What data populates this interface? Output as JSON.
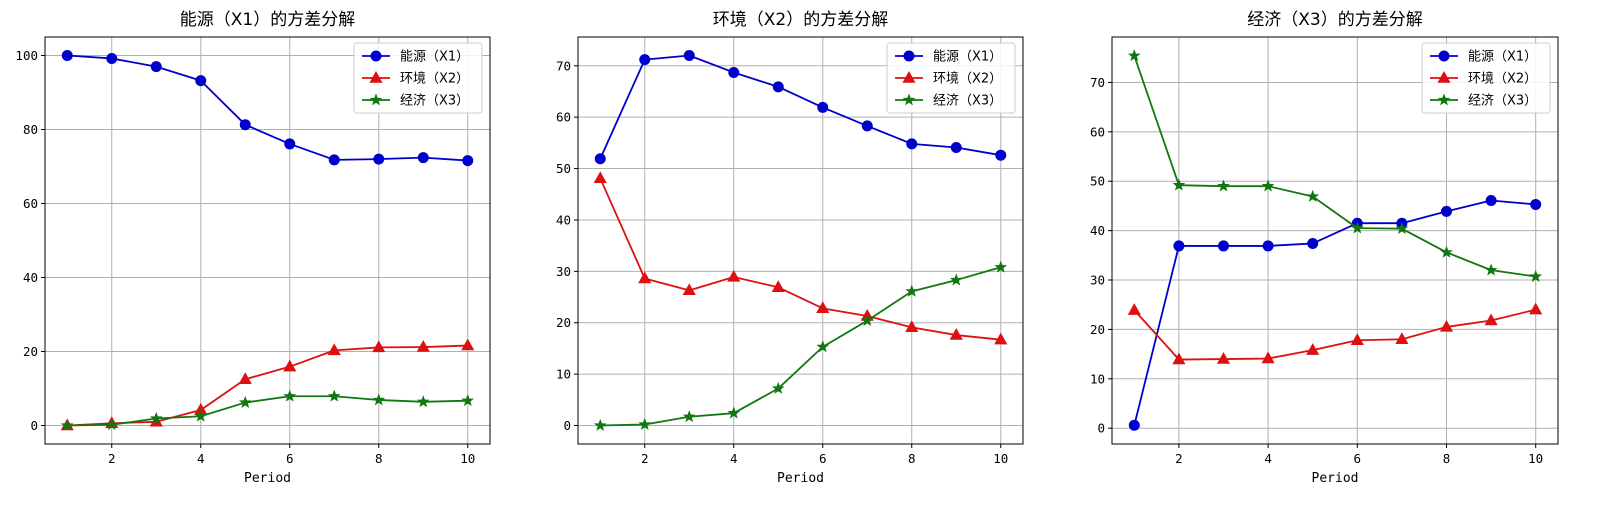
{
  "chart_data": [
    {
      "type": "line",
      "title": "能源（X1）的方差分解",
      "xlabel": "Period",
      "ylabel": "",
      "x": [
        1,
        2,
        3,
        4,
        5,
        6,
        7,
        8,
        9,
        10
      ],
      "xlim": [
        0.5,
        10.5
      ],
      "ylim": [
        -5,
        105
      ],
      "xticks": [
        2,
        4,
        6,
        8,
        10
      ],
      "yticks": [
        0,
        20,
        40,
        60,
        80,
        100
      ],
      "grid": true,
      "legend_position": "top-right",
      "series": [
        {
          "name": "能源（X1）",
          "color": "#0000cc",
          "marker": "circle",
          "values": [
            100,
            99.2,
            97,
            93.2,
            81.3,
            76.1,
            71.8,
            72,
            72.4,
            71.6
          ]
        },
        {
          "name": "环境（X2）",
          "color": "#dd1111",
          "marker": "triangle",
          "values": [
            0,
            0.6,
            1,
            4.2,
            12.5,
            15.9,
            20.3,
            21.1,
            21.2,
            21.6
          ]
        },
        {
          "name": "经济（X3）",
          "color": "#117711",
          "marker": "star",
          "values": [
            0,
            0.2,
            1.9,
            2.5,
            6.2,
            7.9,
            7.9,
            6.9,
            6.4,
            6.7
          ]
        }
      ]
    },
    {
      "type": "line",
      "title": "环境（X2）的方差分解",
      "xlabel": "Period",
      "ylabel": "",
      "x": [
        1,
        2,
        3,
        4,
        5,
        6,
        7,
        8,
        9,
        10
      ],
      "xlim": [
        0.5,
        10.5
      ],
      "ylim": [
        -3.6,
        75.6
      ],
      "xticks": [
        2,
        4,
        6,
        8,
        10
      ],
      "yticks": [
        0,
        10,
        20,
        30,
        40,
        50,
        60,
        70
      ],
      "grid": true,
      "legend_position": "top-right",
      "series": [
        {
          "name": "能源（X1）",
          "color": "#0000cc",
          "marker": "circle",
          "values": [
            51.9,
            71.2,
            72,
            68.7,
            65.9,
            61.9,
            58.3,
            54.8,
            54.1,
            52.6
          ]
        },
        {
          "name": "环境（X2）",
          "color": "#dd1111",
          "marker": "triangle",
          "values": [
            48.1,
            28.6,
            26.3,
            28.9,
            26.9,
            22.8,
            21.3,
            19.1,
            17.6,
            16.7
          ]
        },
        {
          "name": "经济（X3）",
          "color": "#117711",
          "marker": "star",
          "values": [
            0,
            0.2,
            1.7,
            2.4,
            7.2,
            15.3,
            20.4,
            26.1,
            28.3,
            30.8
          ]
        }
      ]
    },
    {
      "type": "line",
      "title": "经济（X3）的方差分解",
      "xlabel": "Period",
      "ylabel": "",
      "x": [
        1,
        2,
        3,
        4,
        5,
        6,
        7,
        8,
        9,
        10
      ],
      "xlim": [
        0.5,
        10.5
      ],
      "ylim": [
        -3.2,
        79.2
      ],
      "xticks": [
        2,
        4,
        6,
        8,
        10
      ],
      "yticks": [
        0,
        10,
        20,
        30,
        40,
        50,
        60,
        70
      ],
      "grid": true,
      "legend_position": "top-right",
      "series": [
        {
          "name": "能源（X1）",
          "color": "#0000cc",
          "marker": "circle",
          "values": [
            0.6,
            36.9,
            36.9,
            36.9,
            37.4,
            41.5,
            41.5,
            43.9,
            46.1,
            45.3
          ]
        },
        {
          "name": "环境（X2）",
          "color": "#dd1111",
          "marker": "triangle",
          "values": [
            23.9,
            13.9,
            14,
            14.1,
            15.8,
            17.8,
            18,
            20.5,
            21.8,
            24
          ]
        },
        {
          "name": "经济（X3）",
          "color": "#117711",
          "marker": "star",
          "values": [
            75.4,
            49.2,
            49,
            49,
            46.9,
            40.5,
            40.4,
            35.6,
            32,
            30.7
          ]
        }
      ]
    }
  ]
}
